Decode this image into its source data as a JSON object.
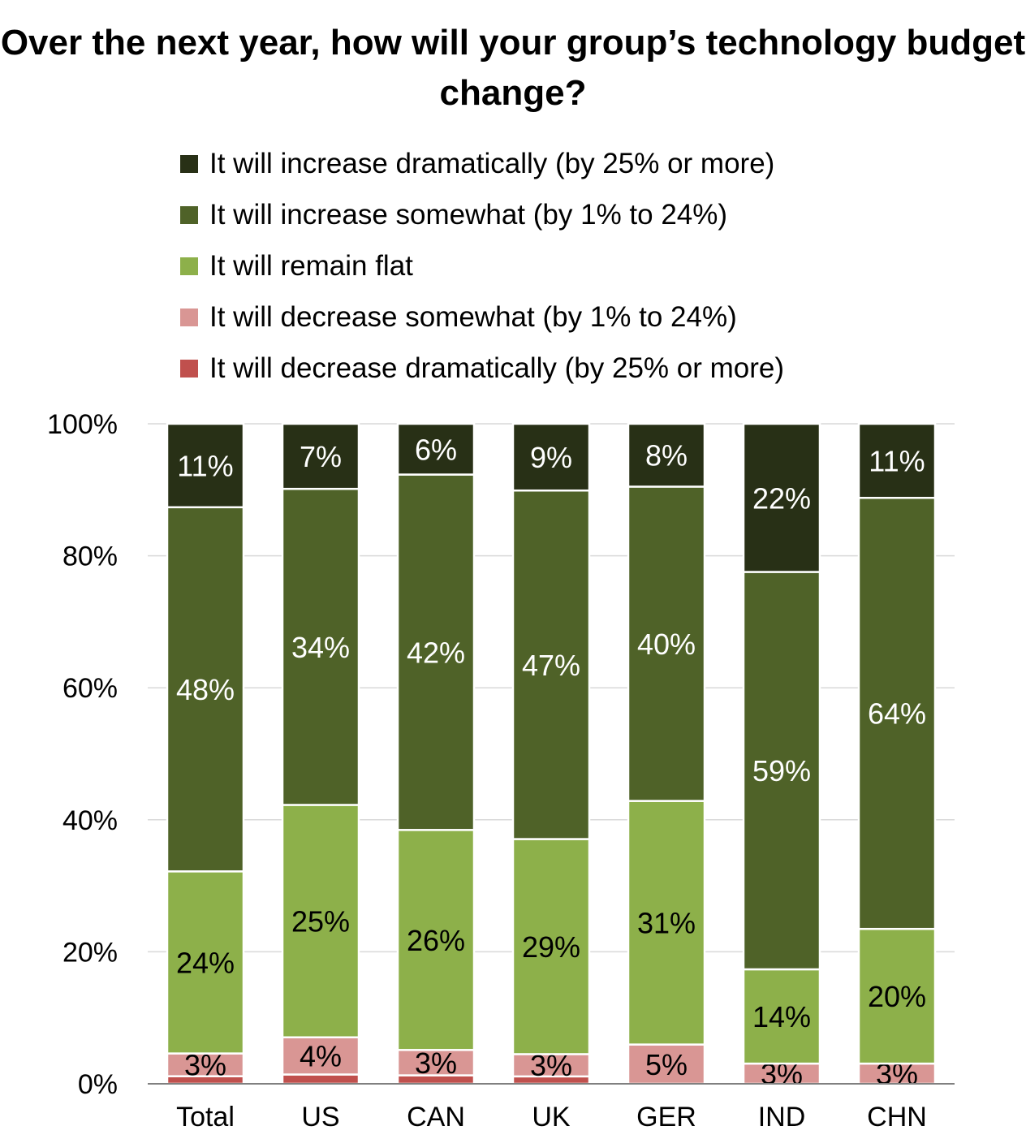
{
  "chart_data": {
    "type": "bar",
    "stacked": true,
    "normalized_to_100": true,
    "title": "Over the next year, how will your group’s technology budget change?",
    "categories": [
      "Total",
      "US",
      "CAN",
      "UK",
      "GER",
      "IND",
      "CHN"
    ],
    "series": [
      {
        "name": "It will decrease dramatically (by 25% or more)",
        "color": "#c0504d",
        "values": [
          1,
          1,
          1,
          1,
          0,
          0,
          0
        ],
        "labels": [
          "",
          "",
          "",
          "",
          "",
          "",
          ""
        ]
      },
      {
        "name": "It will decrease somewhat (by 1% to 24%)",
        "color": "#d99694",
        "values": [
          3,
          4,
          3,
          3,
          5,
          3,
          3
        ],
        "labels": [
          "3%",
          "4%",
          "3%",
          "3%",
          "5%",
          "3%",
          "3%"
        ]
      },
      {
        "name": "It will remain flat",
        "color": "#8db04a",
        "values": [
          24,
          25,
          26,
          29,
          31,
          14,
          20
        ],
        "labels": [
          "24%",
          "25%",
          "26%",
          "29%",
          "31%",
          "14%",
          "20%"
        ]
      },
      {
        "name": "It will increase somewhat (by 1% to 24%)",
        "color": "#4f6228",
        "values": [
          48,
          34,
          42,
          47,
          40,
          59,
          64
        ],
        "labels": [
          "48%",
          "34%",
          "42%",
          "47%",
          "40%",
          "59%",
          "64%"
        ]
      },
      {
        "name": "It will increase dramatically (by 25% or more)",
        "color": "#283016",
        "values": [
          11,
          7,
          6,
          9,
          8,
          22,
          11
        ],
        "labels": [
          "11%",
          "7%",
          "6%",
          "9%",
          "8%",
          "22%",
          "11%"
        ]
      }
    ],
    "legend_order": [
      4,
      3,
      2,
      1,
      0
    ],
    "legend_position": "top",
    "ylim": [
      0,
      100
    ],
    "yticks": [
      "0%",
      "20%",
      "40%",
      "60%",
      "80%",
      "100%"
    ],
    "grid": true,
    "xlabel": "",
    "ylabel": ""
  }
}
